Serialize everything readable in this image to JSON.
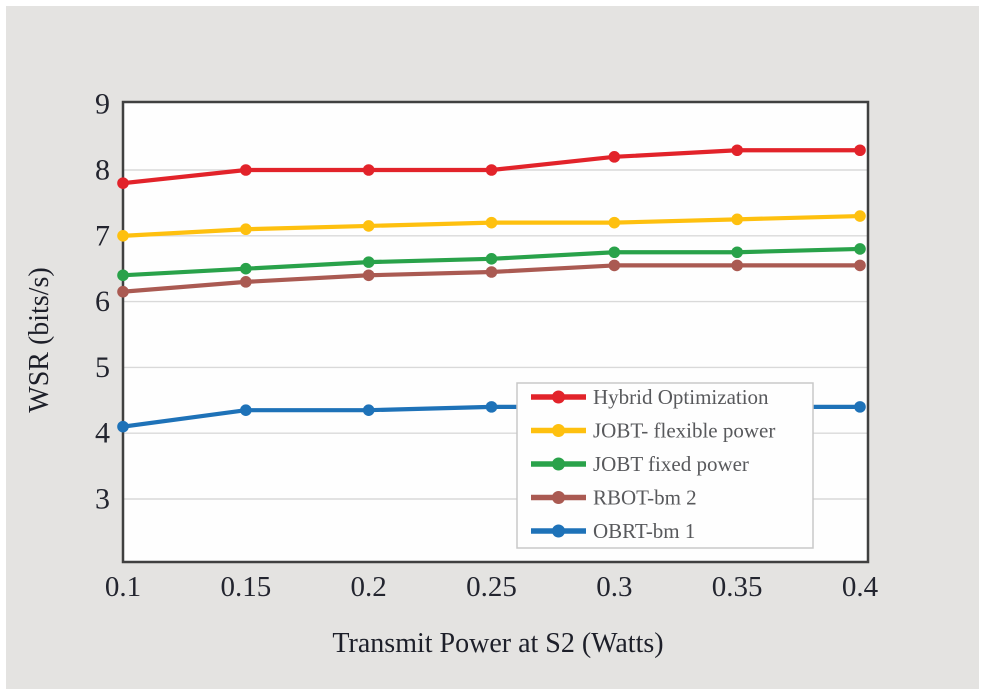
{
  "figure": {
    "background": "#e4e3e1",
    "plot_background": "#fefefe",
    "border_color": "#404040",
    "gridline_color": "#d9d9d9",
    "tick_text_color": "#23252f",
    "legend_border_color": "#c8c8c8",
    "legend_text_color": "#58595c"
  },
  "chart_data": {
    "type": "line",
    "title": "",
    "xlabel": "Transmit Power at S2 (Watts)",
    "ylabel": "WSR (bits/s)",
    "grid": "horizontal",
    "legend_position": "inside lower right",
    "xlim": [
      0.1,
      0.4
    ],
    "ylim": [
      2.05,
      9.05
    ],
    "x": [
      0.1,
      0.15,
      0.2,
      0.25,
      0.3,
      0.35,
      0.4
    ],
    "x_tick_labels": [
      "0.1",
      "0.15",
      "0.2",
      "0.25",
      "0.3",
      "0.35",
      "0.4"
    ],
    "y_ticks": [
      9,
      8,
      7,
      6,
      5,
      4,
      3
    ],
    "series": [
      {
        "name": "Hybrid Optimization",
        "color": "#e2232a",
        "values": [
          7.8,
          8.0,
          8.0,
          8.0,
          8.2,
          8.3,
          8.3
        ]
      },
      {
        "name": "JOBT- flexible power",
        "color": "#fec00f",
        "values": [
          7.0,
          7.1,
          7.15,
          7.2,
          7.2,
          7.25,
          7.3
        ]
      },
      {
        "name": "JOBT fixed power",
        "color": "#29a24a",
        "values": [
          6.4,
          6.5,
          6.6,
          6.65,
          6.75,
          6.75,
          6.8
        ]
      },
      {
        "name": "RBOT-bm 2",
        "color": "#aa5a52",
        "values": [
          6.15,
          6.3,
          6.4,
          6.45,
          6.55,
          6.55,
          6.55
        ]
      },
      {
        "name": "OBRT-bm 1",
        "color": "#1e72b8",
        "values": [
          4.1,
          4.35,
          4.35,
          4.4,
          4.4,
          4.4,
          4.4
        ]
      }
    ]
  }
}
